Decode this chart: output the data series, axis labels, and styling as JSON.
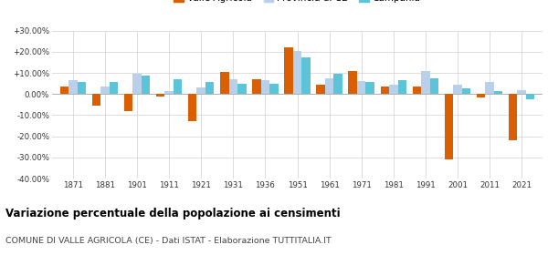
{
  "years": [
    1871,
    1881,
    1901,
    1911,
    1921,
    1931,
    1936,
    1951,
    1961,
    1971,
    1981,
    1991,
    2001,
    2011,
    2021
  ],
  "valle_agricola": [
    3.5,
    -5.5,
    -8.0,
    -1.0,
    -13.0,
    10.5,
    7.0,
    22.0,
    4.5,
    11.0,
    3.5,
    3.5,
    -31.0,
    -1.5,
    -22.0
  ],
  "provincia_ce": [
    6.5,
    3.5,
    9.5,
    1.5,
    3.0,
    7.0,
    6.5,
    20.5,
    7.5,
    6.0,
    4.5,
    11.0,
    4.5,
    5.5,
    2.0
  ],
  "campania": [
    5.5,
    5.5,
    8.5,
    7.0,
    5.5,
    5.0,
    5.0,
    17.5,
    9.5,
    5.5,
    6.5,
    7.5,
    2.5,
    1.5,
    -2.5
  ],
  "color_valle": "#d95f02",
  "color_provincia": "#b8d0ea",
  "color_campania": "#5bc4d8",
  "title": "Variazione percentuale della popolazione ai censimenti",
  "subtitle": "COMUNE DI VALLE AGRICOLA (CE) - Dati ISTAT - Elaborazione TUTTITALIA.IT",
  "ylim": [
    -40,
    30
  ],
  "yticks": [
    -40,
    -30,
    -20,
    -10,
    0,
    10,
    20,
    30
  ],
  "ytick_labels": [
    "-40.00%",
    "-30.00%",
    "-20.00%",
    "-10.00%",
    "0.00%",
    "+10.00%",
    "+20.00%",
    "+30.00%"
  ],
  "bar_width": 0.27,
  "background_color": "#ffffff",
  "grid_color": "#d0d0d0"
}
